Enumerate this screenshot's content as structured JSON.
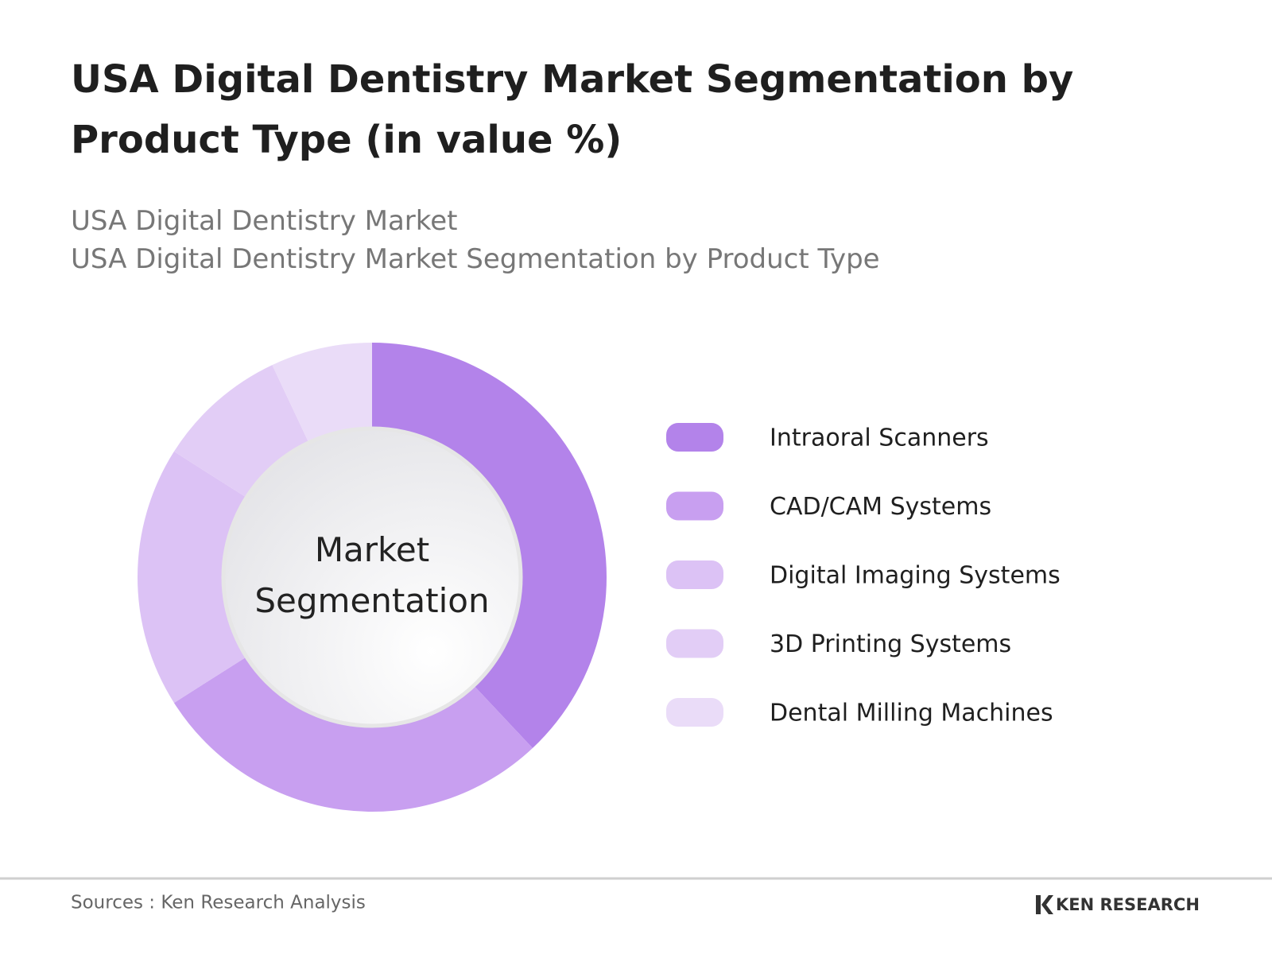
{
  "chart_data": {
    "type": "pie",
    "title": "USA Digital Dentistry Market Segmentation by Product Type (in value %)",
    "subtitles": [
      "USA Digital Dentistry Market",
      "USA Digital Dentistry Market Segmentation by Product Type"
    ],
    "center_label": "Market Segmentation",
    "categories": [
      "Intraoral Scanners",
      "CAD/CAM Systems",
      "Digital Imaging Systems",
      "3D Printing Systems",
      "Dental Milling Machines"
    ],
    "values": [
      38,
      28,
      18,
      9,
      7
    ],
    "colors": [
      "#b383ea",
      "#c89ff0",
      "#dcc2f5",
      "#e2cdf6",
      "#eadcf8"
    ],
    "legend": "right"
  },
  "footer": {
    "source": "Sources : Ken Research Analysis",
    "brand": "KEN RESEARCH"
  }
}
